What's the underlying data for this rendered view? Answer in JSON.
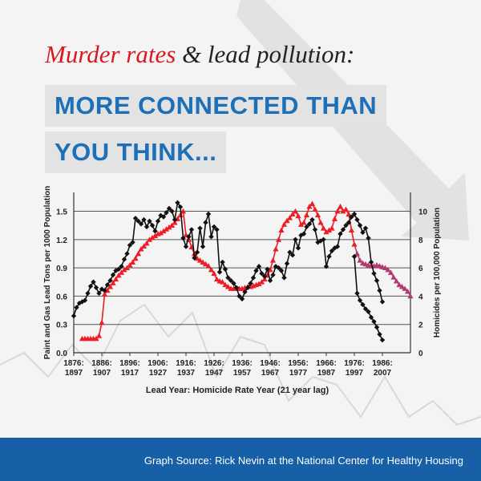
{
  "header": {
    "title_red": "Murder rates",
    "title_rest": " & lead pollution:",
    "banner_line1": "MORE CONNECTED THAN",
    "banner_line2": "YOU THINK..."
  },
  "footer": {
    "source": "Graph Source: Rick Nevin at the National Center for Healthy Housing"
  },
  "colors": {
    "lead_series": "#ee1c25",
    "lead_series_recent": "#b23a6e",
    "homicide_series": "#111111",
    "title_red": "#d71920",
    "banner_text": "#1d6fb8",
    "footer_bg": "#1760a8"
  },
  "chart_data": {
    "type": "line",
    "title": "",
    "xlabel": "Lead Year: Homicide Rate Year (21 year lag)",
    "ylabel_left": "Paint and Gas Lead Tons per 1000 Population",
    "ylabel_right": "Homicides per 100,000 Population",
    "xlim": [
      1876,
      1996
    ],
    "ylim_left": [
      0,
      1.7
    ],
    "ylim_right": [
      0,
      11.33
    ],
    "yticks_left": [
      "0.0",
      "0.3",
      "0.6",
      "0.9",
      "1.2",
      "1.5"
    ],
    "yticks_right": [
      "0",
      "2",
      "4",
      "6",
      "8",
      "10"
    ],
    "xticks": [
      {
        "lead": "1876:",
        "homicide": "1897",
        "x": 1876
      },
      {
        "lead": "1886:",
        "homicide": "1907",
        "x": 1886
      },
      {
        "lead": "1896:",
        "homicide": "1917",
        "x": 1896
      },
      {
        "lead": "1906:",
        "homicide": "1927",
        "x": 1906
      },
      {
        "lead": "1916:",
        "homicide": "1937",
        "x": 1916
      },
      {
        "lead": "1926:",
        "homicide": "1947",
        "x": 1926
      },
      {
        "lead": "1936:",
        "homicide": "1957",
        "x": 1936
      },
      {
        "lead": "1946:",
        "homicide": "1967",
        "x": 1946
      },
      {
        "lead": "1956:",
        "homicide": "1977",
        "x": 1956
      },
      {
        "lead": "1966:",
        "homicide": "1987",
        "x": 1966
      },
      {
        "lead": "1976:",
        "homicide": "1997",
        "x": 1976
      },
      {
        "lead": "1986:",
        "homicide": "2007",
        "x": 1986
      }
    ],
    "grid": true,
    "series": [
      {
        "axis": "left",
        "marker": "triangle",
        "x": [
          1879,
          1880,
          1881,
          1882,
          1883,
          1884,
          1885,
          1886,
          1887,
          1888,
          1889,
          1890,
          1891,
          1892,
          1893,
          1894,
          1895,
          1896,
          1897,
          1898,
          1899,
          1900,
          1901,
          1902,
          1903,
          1904,
          1905,
          1906,
          1907,
          1908,
          1909,
          1910,
          1911,
          1912,
          1913,
          1914,
          1915,
          1916,
          1917,
          1918,
          1919,
          1920,
          1921,
          1922,
          1923,
          1924,
          1925,
          1926,
          1927,
          1928,
          1929,
          1930,
          1931,
          1932,
          1933,
          1934,
          1935,
          1936,
          1937,
          1938,
          1939,
          1940,
          1941,
          1942,
          1943,
          1944,
          1945,
          1946,
          1947,
          1948,
          1949,
          1950,
          1951,
          1952,
          1953,
          1954,
          1955,
          1956,
          1957,
          1958,
          1959,
          1960,
          1961,
          1962,
          1963,
          1964,
          1965,
          1966,
          1967,
          1968,
          1969,
          1970,
          1971,
          1972,
          1973,
          1974,
          1975,
          1976,
          1977,
          1978,
          1979,
          1980,
          1981,
          1982,
          1983,
          1984,
          1985,
          1986,
          1987,
          1988,
          1989,
          1990,
          1991,
          1992,
          1993,
          1994,
          1995,
          1996
        ],
        "y": [
          0.15,
          0.15,
          0.15,
          0.15,
          0.15,
          0.15,
          0.18,
          0.32,
          0.62,
          0.66,
          0.7,
          0.74,
          0.78,
          0.82,
          0.85,
          0.88,
          0.9,
          0.93,
          0.96,
          1.0,
          1.05,
          1.1,
          1.13,
          1.16,
          1.2,
          1.22,
          1.24,
          1.26,
          1.27,
          1.29,
          1.31,
          1.33,
          1.35,
          1.38,
          1.42,
          1.46,
          1.5,
          1.25,
          1.2,
          1.12,
          1.05,
          1.0,
          0.98,
          0.96,
          0.94,
          0.92,
          0.88,
          0.84,
          0.78,
          0.76,
          0.75,
          0.72,
          0.7,
          0.68,
          0.68,
          0.68,
          0.68,
          0.68,
          0.69,
          0.7,
          0.7,
          0.71,
          0.72,
          0.73,
          0.75,
          0.78,
          0.82,
          0.88,
          0.98,
          1.1,
          1.2,
          1.3,
          1.36,
          1.4,
          1.43,
          1.47,
          1.5,
          1.45,
          1.36,
          1.38,
          1.46,
          1.55,
          1.58,
          1.52,
          1.46,
          1.38,
          1.32,
          1.28,
          1.3,
          1.32,
          1.42,
          1.5,
          1.55,
          1.5,
          1.52,
          1.47,
          1.3,
          1.15,
          1.05,
          0.98,
          0.95,
          0.94,
          0.93,
          0.92,
          0.92,
          0.93,
          0.92,
          0.91,
          0.9,
          0.88,
          0.85,
          0.8,
          0.76,
          0.72,
          0.7,
          0.68,
          0.65,
          0.6
        ]
      },
      {
        "axis": "right",
        "marker": "diamond",
        "x": [
          1876,
          1877,
          1878,
          1879,
          1880,
          1881,
          1882,
          1883,
          1884,
          1885,
          1886,
          1887,
          1888,
          1889,
          1890,
          1891,
          1892,
          1893,
          1894,
          1895,
          1896,
          1897,
          1898,
          1899,
          1900,
          1901,
          1902,
          1903,
          1904,
          1905,
          1906,
          1907,
          1908,
          1909,
          1910,
          1911,
          1912,
          1913,
          1914,
          1915,
          1916,
          1917,
          1918,
          1919,
          1920,
          1921,
          1922,
          1923,
          1924,
          1925,
          1926,
          1927,
          1928,
          1929,
          1930,
          1931,
          1932,
          1933,
          1934,
          1935,
          1936,
          1937,
          1938,
          1939,
          1940,
          1941,
          1942,
          1943,
          1944,
          1945,
          1946,
          1947,
          1948,
          1949,
          1950,
          1951,
          1952,
          1953,
          1954,
          1955,
          1956,
          1957,
          1958,
          1959,
          1960,
          1961,
          1962,
          1963,
          1964,
          1965,
          1966,
          1967,
          1968,
          1969,
          1970,
          1971,
          1972,
          1973,
          1974,
          1975,
          1976,
          1977,
          1978,
          1979,
          1980,
          1981,
          1982,
          1983,
          1984,
          1985,
          1986
        ],
        "y": [
          2.6,
          3.2,
          3.5,
          3.6,
          3.7,
          4.2,
          4.7,
          5.0,
          4.6,
          4.2,
          4.5,
          4.4,
          4.8,
          5.1,
          5.5,
          5.8,
          5.9,
          6.1,
          6.6,
          7.0,
          7.6,
          7.8,
          9.5,
          9.3,
          9.1,
          9.4,
          8.9,
          9.3,
          9.0,
          8.6,
          9.3,
          9.7,
          9.6,
          9.9,
          10.2,
          10.0,
          9.4,
          10.6,
          10.3,
          8.1,
          7.5,
          8.2,
          8.7,
          6.7,
          7.1,
          8.8,
          7.5,
          9.2,
          9.8,
          8.2,
          8.9,
          8.7,
          5.7,
          6.4,
          5.9,
          5.3,
          5.1,
          4.9,
          4.6,
          4.0,
          3.8,
          4.3,
          4.6,
          4.9,
          5.3,
          5.8,
          6.1,
          5.6,
          5.4,
          5.9,
          5.1,
          5.5,
          6.1,
          6.0,
          5.8,
          5.3,
          6.3,
          7.1,
          6.9,
          8.0,
          7.4,
          8.3,
          8.4,
          8.9,
          9.1,
          9.4,
          8.7,
          7.8,
          7.9,
          8.0,
          6.1,
          6.8,
          7.2,
          7.4,
          7.5,
          8.4,
          8.7,
          9.0,
          9.2,
          9.6,
          9.8,
          9.4,
          9.0,
          8.5,
          8.8,
          8.1,
          6.4,
          5.6,
          5.1,
          4.4,
          3.6
        ]
      },
      {
        "axis": "right",
        "marker": "diamond",
        "x": [
          1976,
          1977,
          1978,
          1979,
          1980,
          1981,
          1982,
          1983,
          1984,
          1985,
          1986
        ],
        "y": [
          6.8,
          4.2,
          3.7,
          3.4,
          3.1,
          2.9,
          2.5,
          2.2,
          1.8,
          1.3,
          0.9
        ]
      }
    ]
  }
}
